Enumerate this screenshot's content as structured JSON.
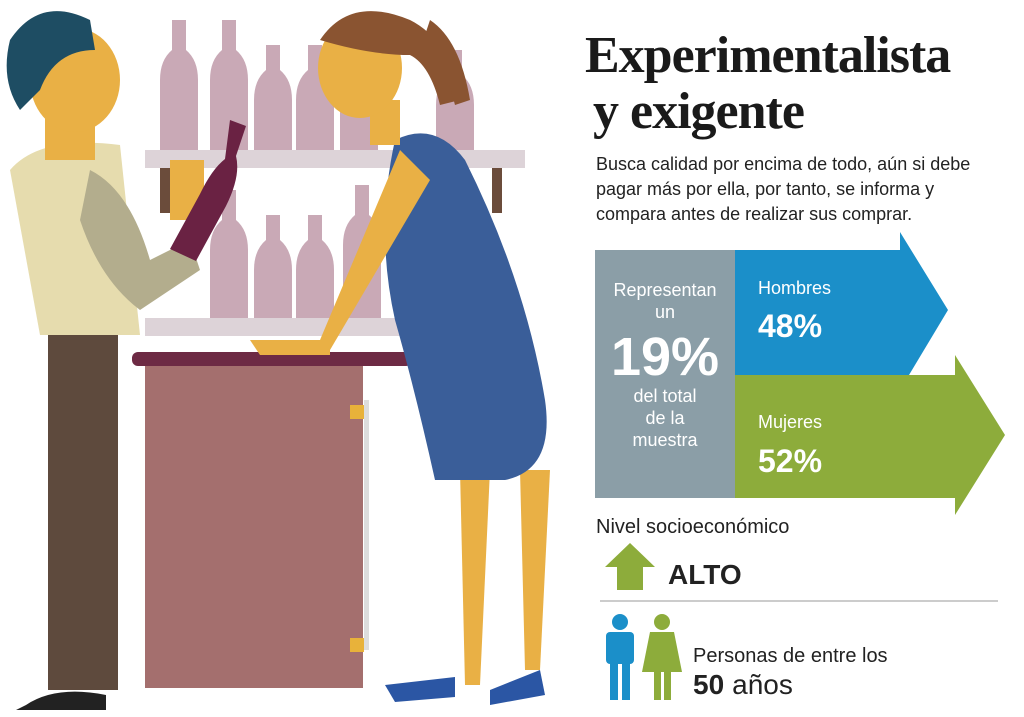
{
  "title": [
    "Experimentalista",
    "y exigente"
  ],
  "description": [
    "Busca calidad por encima de todo, aún si debe",
    "pagar más por ella, por tanto, se informa y",
    "compara antes de realizar sus comprar."
  ],
  "sample": {
    "intro": [
      "Representan",
      "un"
    ],
    "percent": "19%",
    "outro": [
      "del total",
      "de la",
      "muestra"
    ]
  },
  "gender": [
    {
      "label": "Hombres",
      "percent": "48%"
    },
    {
      "label": "Mujeres",
      "percent": "52%"
    }
  ],
  "socioeconomic": {
    "label": "Nivel socioeconómico",
    "value": "ALTO"
  },
  "age": {
    "line": "Personas de entre los",
    "number": "50",
    "unit": "años"
  }
}
